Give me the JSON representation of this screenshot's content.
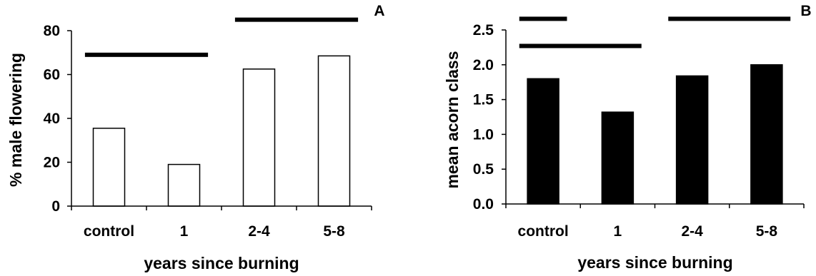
{
  "chart_data": [
    {
      "type": "bar",
      "panel_label": "A",
      "categories": [
        "control",
        "1",
        "2-4",
        "5-8"
      ],
      "values": [
        35.5,
        19,
        62.5,
        68.5
      ],
      "ylabel": "% male flowering",
      "xlabel": "years since burning",
      "ylim": [
        0,
        80
      ],
      "yticks": [
        "0",
        "20",
        "40",
        "60",
        "80"
      ],
      "ytick_values": [
        0,
        20,
        40,
        60,
        80
      ],
      "bar_fill": "#ffffff",
      "bar_stroke": "#000000",
      "grid": false,
      "significance_bars": [
        {
          "from": "control",
          "to": "1",
          "y": 69
        },
        {
          "from": "2-4",
          "to": "5-8",
          "y": 85
        }
      ]
    },
    {
      "type": "bar",
      "panel_label": "B",
      "categories": [
        "control",
        "1",
        "2-4",
        "5-8"
      ],
      "values": [
        1.8,
        1.32,
        1.84,
        2.0
      ],
      "ylabel": "mean acorn class",
      "xlabel": "years since burning",
      "ylim": [
        0,
        2.5
      ],
      "yticks": [
        "0.0",
        "0.5",
        "1.0",
        "1.5",
        "2.0",
        "2.5"
      ],
      "ytick_values": [
        0,
        0.5,
        1.0,
        1.5,
        2.0,
        2.5
      ],
      "bar_fill": "#000000",
      "bar_stroke": "#000000",
      "grid": false,
      "significance_bars": [
        {
          "from": "control",
          "to": "control",
          "y": 2.66
        },
        {
          "from": "control",
          "to": "1",
          "y": 2.27
        },
        {
          "from": "2-4",
          "to": "5-8",
          "y": 2.66
        }
      ]
    }
  ]
}
